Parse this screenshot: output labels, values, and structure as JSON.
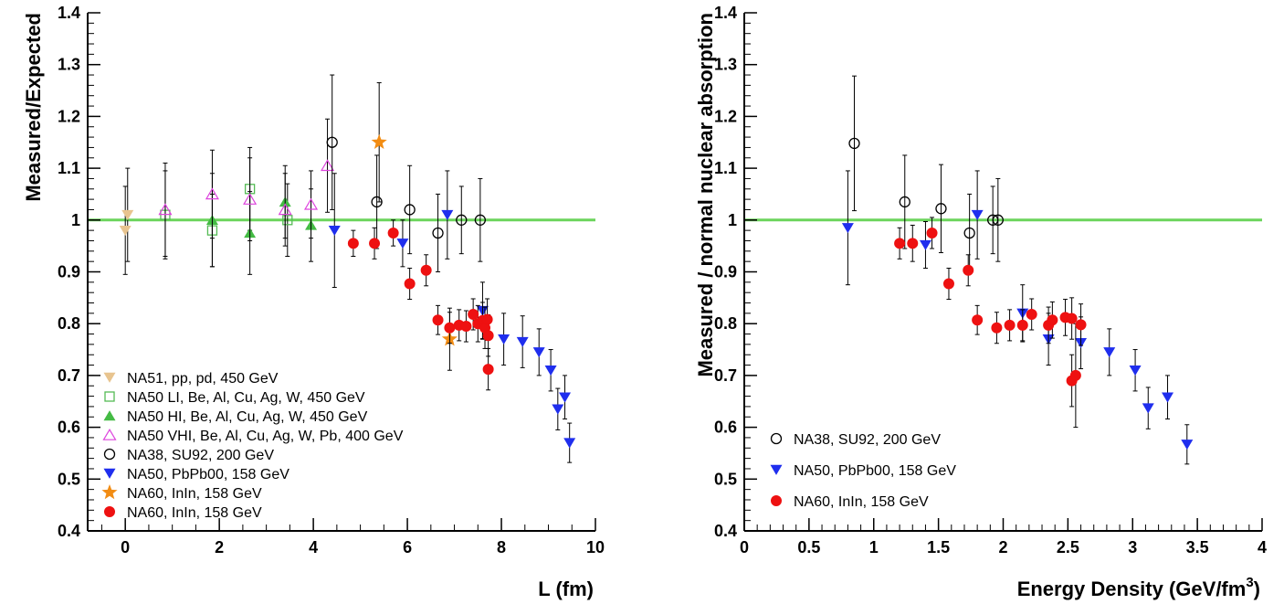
{
  "chart_data": [
    {
      "type": "scatter",
      "xlabel": "L (fm)",
      "ylabel": "Measured/Expected",
      "xlim": [
        -0.8,
        10
      ],
      "ylim": [
        0.4,
        1.4
      ],
      "xticks": [
        "0",
        "2",
        "4",
        "6",
        "8",
        "10"
      ],
      "yticks": [
        "0.4",
        "0.5",
        "0.6",
        "0.7",
        "0.8",
        "0.9",
        "1",
        "1.1",
        "1.2",
        "1.3",
        "1.4"
      ],
      "reference_line": {
        "y": 1.0,
        "color": "#6bd45c"
      },
      "legend_position": "bottom-left",
      "series": [
        {
          "name": "NA51, pp, pd, 450 GeV",
          "marker": "triangle-down-filled",
          "color": "#e8c48f",
          "points": [
            [
              0.0,
              0.98,
              0.085
            ],
            [
              0.05,
              1.01,
              0.09
            ]
          ]
        },
        {
          "name": "NA50 LI, Be, Al, Cu, Ag, W, 450 GeV",
          "marker": "square-open",
          "color": "#55bb55",
          "points": [
            [
              0.85,
              1.01,
              0.085
            ],
            [
              1.85,
              0.98,
              0.07
            ],
            [
              2.65,
              1.06,
              0.08
            ],
            [
              3.45,
              1.0,
              0.07
            ]
          ]
        },
        {
          "name": "NA50 HI, Be, Al, Cu, Ag, W, 450 GeV",
          "marker": "triangle-up-filled",
          "color": "#44bb44",
          "points": [
            [
              1.85,
              1.0,
              0.09
            ],
            [
              2.65,
              0.975,
              0.08
            ],
            [
              3.4,
              1.035,
              0.07
            ],
            [
              3.95,
              0.99,
              0.07
            ]
          ]
        },
        {
          "name": "NA50 VHI, Be, Al, Cu, Ag, W, Pb, 400 GeV",
          "marker": "triangle-up-open",
          "color": "#dd44dd",
          "points": [
            [
              0.85,
              1.02,
              0.09
            ],
            [
              1.85,
              1.05,
              0.085
            ],
            [
              2.65,
              1.04,
              0.08
            ],
            [
              3.4,
              1.02,
              0.07
            ],
            [
              3.95,
              1.03,
              0.065
            ],
            [
              4.3,
              1.105,
              0.09
            ]
          ]
        },
        {
          "name": "NA38, SU92, 200 GeV",
          "marker": "circle-open",
          "color": "#000000",
          "points": [
            [
              4.4,
              1.15,
              0.13
            ],
            [
              5.35,
              1.035,
              0.09
            ],
            [
              6.05,
              1.02,
              0.085
            ],
            [
              6.65,
              0.975,
              0.075
            ],
            [
              7.15,
              1.0,
              0.065
            ],
            [
              7.55,
              1.0,
              0.08
            ]
          ]
        },
        {
          "name": "NA50, PbPb00, 158 GeV",
          "marker": "triangle-down-filled",
          "color": "#1f2eee",
          "points": [
            [
              4.45,
              0.98,
              0.11
            ],
            [
              5.9,
              0.955,
              0.045
            ],
            [
              6.85,
              1.01,
              0.085
            ],
            [
              7.6,
              0.825,
              0.055
            ],
            [
              8.05,
              0.77,
              0.05
            ],
            [
              8.45,
              0.765,
              0.05
            ],
            [
              8.8,
              0.745,
              0.045
            ],
            [
              9.05,
              0.71,
              0.04
            ],
            [
              9.2,
              0.635,
              0.04
            ],
            [
              9.35,
              0.658,
              0.042
            ],
            [
              9.45,
              0.57,
              0.038
            ]
          ]
        },
        {
          "name": "NA60, InIn, 158 GeV",
          "marker": "star-filled",
          "color": "#f28c13",
          "points": [
            [
              5.4,
              1.15,
              0.115
            ],
            [
              6.9,
              0.77,
              0.06
            ]
          ]
        },
        {
          "name": "NA60, InIn, 158 GeV",
          "marker": "circle-filled",
          "color": "#ee1111",
          "points": [
            [
              4.85,
              0.955,
              0.025
            ],
            [
              5.3,
              0.955,
              0.03
            ],
            [
              5.7,
              0.975,
              0.025
            ],
            [
              6.05,
              0.877,
              0.03
            ],
            [
              6.4,
              0.903,
              0.03
            ],
            [
              6.65,
              0.807,
              0.028
            ],
            [
              6.9,
              0.792,
              0.03
            ],
            [
              7.1,
              0.797,
              0.03
            ],
            [
              7.25,
              0.795,
              0.03
            ],
            [
              7.4,
              0.818,
              0.03
            ],
            [
              7.5,
              0.8,
              0.035
            ],
            [
              7.6,
              0.806,
              0.035
            ],
            [
              7.65,
              0.792,
              0.04
            ],
            [
              7.7,
              0.808,
              0.04
            ],
            [
              7.72,
              0.777,
              0.04
            ],
            [
              7.72,
              0.712,
              0.04
            ]
          ]
        }
      ]
    },
    {
      "type": "scatter",
      "xlabel": "Energy Density (GeV/fm",
      "xlabel_superscript": "3",
      "xlabel_close": ")",
      "ylabel": "Measured / normal nuclear absorption",
      "xlim": [
        0,
        4
      ],
      "ylim": [
        0.4,
        1.4
      ],
      "xticks": [
        "0",
        "0.5",
        "1",
        "1.5",
        "2",
        "2.5",
        "3",
        "3.5",
        "4"
      ],
      "yticks": [
        "0.4",
        "0.5",
        "0.6",
        "0.7",
        "0.8",
        "0.9",
        "1",
        "1.1",
        "1.2",
        "1.3",
        "1.4"
      ],
      "reference_line": {
        "y": 1.0,
        "color": "#6bd45c"
      },
      "legend_position": "bottom-left",
      "series": [
        {
          "name": "NA38, SU92, 200 GeV",
          "marker": "circle-open",
          "color": "#000000",
          "points": [
            [
              0.85,
              1.148,
              0.13
            ],
            [
              1.24,
              1.035,
              0.09
            ],
            [
              1.52,
              1.022,
              0.085
            ],
            [
              1.74,
              0.975,
              0.075
            ],
            [
              1.92,
              1.0,
              0.065
            ],
            [
              1.96,
              1.0,
              0.08
            ]
          ]
        },
        {
          "name": "NA50, PbPb00, 158 GeV",
          "marker": "triangle-down-filled",
          "color": "#1f2eee",
          "points": [
            [
              0.8,
              0.985,
              0.11
            ],
            [
              1.4,
              0.952,
              0.045
            ],
            [
              1.8,
              1.01,
              0.085
            ],
            [
              2.15,
              0.82,
              0.055
            ],
            [
              2.35,
              0.77,
              0.05
            ],
            [
              2.6,
              0.763,
              0.05
            ],
            [
              2.82,
              0.745,
              0.045
            ],
            [
              3.02,
              0.71,
              0.04
            ],
            [
              3.12,
              0.637,
              0.04
            ],
            [
              3.27,
              0.658,
              0.042
            ],
            [
              3.42,
              0.567,
              0.038
            ]
          ]
        },
        {
          "name": "NA60, InIn, 158 GeV",
          "marker": "circle-filled",
          "color": "#ee1111",
          "points": [
            [
              1.2,
              0.955,
              0.03
            ],
            [
              1.3,
              0.955,
              0.035
            ],
            [
              1.45,
              0.975,
              0.03
            ],
            [
              1.58,
              0.877,
              0.03
            ],
            [
              1.73,
              0.903,
              0.03
            ],
            [
              1.8,
              0.807,
              0.028
            ],
            [
              1.95,
              0.792,
              0.03
            ],
            [
              2.05,
              0.797,
              0.03
            ],
            [
              2.15,
              0.797,
              0.03
            ],
            [
              2.22,
              0.818,
              0.03
            ],
            [
              2.35,
              0.797,
              0.035
            ],
            [
              2.38,
              0.807,
              0.035
            ],
            [
              2.48,
              0.812,
              0.035
            ],
            [
              2.53,
              0.81,
              0.04
            ],
            [
              2.53,
              0.69,
              0.05
            ],
            [
              2.56,
              0.7,
              0.1
            ],
            [
              2.6,
              0.798,
              0.04
            ]
          ]
        }
      ]
    }
  ]
}
